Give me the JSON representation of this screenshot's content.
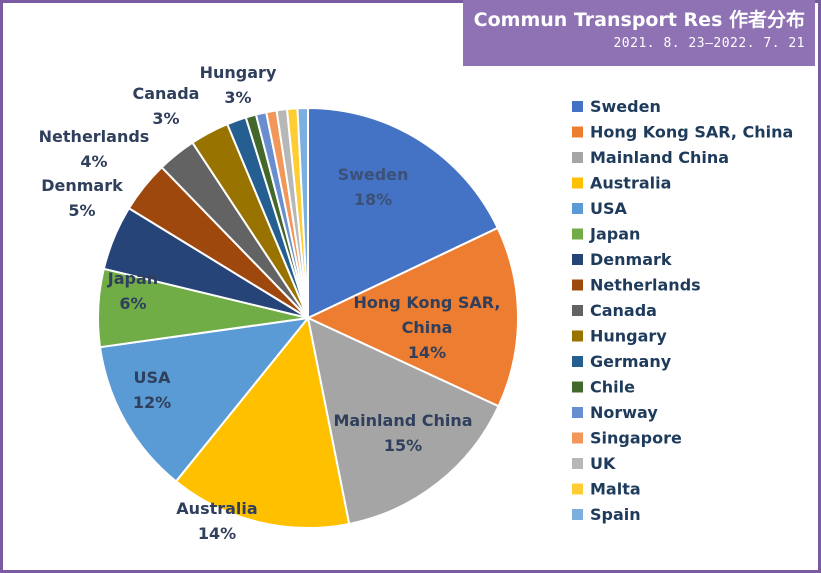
{
  "header": {
    "title": "Commun Transport Res 作者分布",
    "date_range": "2021. 8. 23–2022. 7. 21"
  },
  "chart_data": {
    "type": "pie",
    "series": [
      {
        "name": "Sweden",
        "value": 18,
        "label_lines": [
          "Sweden",
          "18%"
        ],
        "color": "#4472c4",
        "label_color": "#3b5178"
      },
      {
        "name": "Hong Kong SAR, China",
        "value": 14,
        "label_lines": [
          "Hong Kong SAR,",
          "China",
          "14%"
        ],
        "color": "#ed7d31",
        "label_color": "#2f3f5c"
      },
      {
        "name": "Mainland China",
        "value": 15,
        "label_lines": [
          "Mainland China",
          "15%"
        ],
        "color": "#a5a5a5",
        "label_color": "#2f3f5c"
      },
      {
        "name": "Australia",
        "value": 14,
        "label_lines": [
          "Australia",
          "14%"
        ],
        "color": "#ffc000",
        "label_color": "#2f3f5c"
      },
      {
        "name": "USA",
        "value": 12,
        "label_lines": [
          "USA",
          "12%"
        ],
        "color": "#5b9bd5",
        "label_color": "#2f3f5c"
      },
      {
        "name": "Japan",
        "value": 6,
        "label_lines": [
          "Japan",
          "6%"
        ],
        "color": "#70ad47",
        "label_color": "#2f3f5c"
      },
      {
        "name": "Denmark",
        "value": 5,
        "label_lines": [
          "Denmark",
          "5%"
        ],
        "color": "#264478",
        "label_color": "#2f3f5c"
      },
      {
        "name": "Netherlands",
        "value": 4,
        "label_lines": [
          "Netherlands",
          "4%"
        ],
        "color": "#9e480e",
        "label_color": "#2f3f5c"
      },
      {
        "name": "Canada",
        "value": 3,
        "label_lines": [
          "Canada",
          "3%"
        ],
        "color": "#636363",
        "label_color": "#2f3f5c"
      },
      {
        "name": "Hungary",
        "value": 3,
        "label_lines": [
          "Hungary",
          "3%"
        ],
        "color": "#997300",
        "label_color": "#2f3f5c"
      },
      {
        "name": "Germany",
        "value": 1.5,
        "label_lines": [],
        "color": "#255e91",
        "label_color": "#2f3f5c"
      },
      {
        "name": "Chile",
        "value": 0.8,
        "label_lines": [],
        "color": "#43682b",
        "label_color": "#2f3f5c"
      },
      {
        "name": "Norway",
        "value": 0.8,
        "label_lines": [],
        "color": "#698ed0",
        "label_color": "#2f3f5c"
      },
      {
        "name": "Singapore",
        "value": 0.8,
        "label_lines": [],
        "color": "#f1975a",
        "label_color": "#2f3f5c"
      },
      {
        "name": "UK",
        "value": 0.8,
        "label_lines": [],
        "color": "#b7b7b7",
        "label_color": "#2f3f5c"
      },
      {
        "name": "Malta",
        "value": 0.8,
        "label_lines": [],
        "color": "#ffcd33",
        "label_color": "#2f3f5c"
      },
      {
        "name": "Spain",
        "value": 0.8,
        "label_lines": [],
        "color": "#7cafdd",
        "label_color": "#2f3f5c"
      }
    ],
    "legend_position": "right"
  }
}
